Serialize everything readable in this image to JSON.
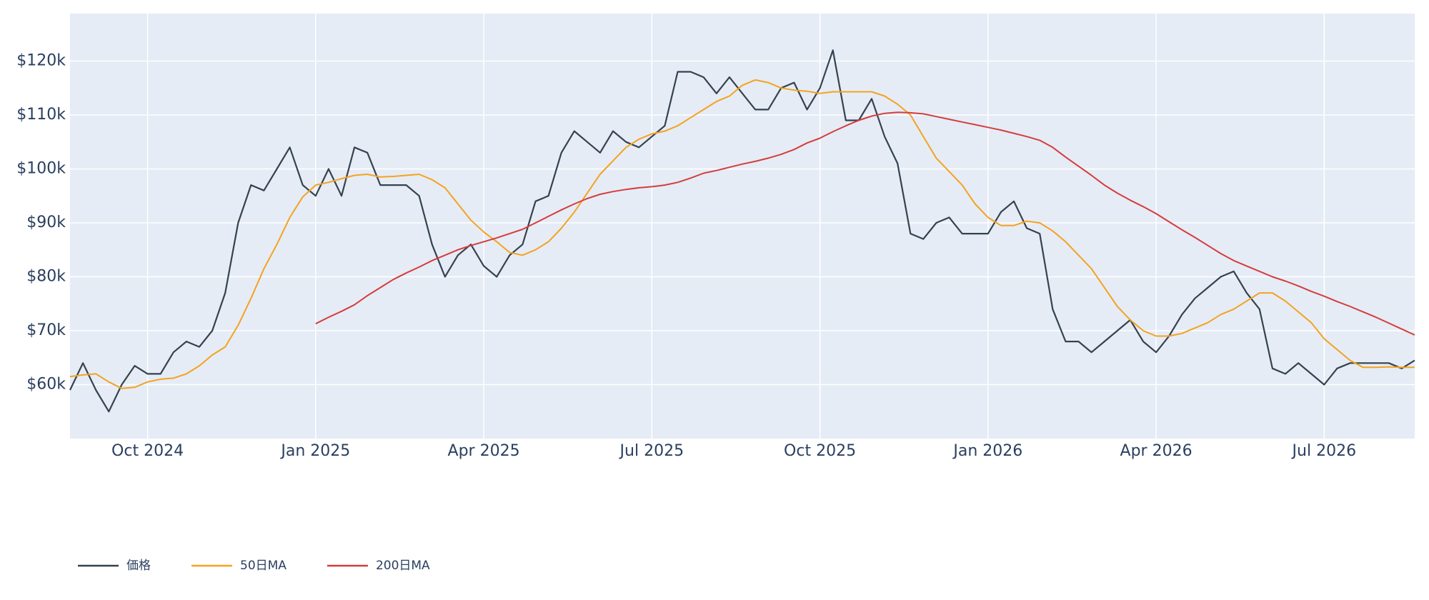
{
  "chart_data": {
    "type": "line",
    "categories": [
      null,
      null,
      null,
      null,
      null,
      null,
      "Oct 2024",
      null,
      null,
      null,
      null,
      null,
      null,
      null,
      null,
      null,
      null,
      null,
      null,
      "Jan 2025",
      null,
      null,
      null,
      null,
      null,
      null,
      null,
      null,
      null,
      null,
      null,
      null,
      "Apr 2025",
      null,
      null,
      null,
      null,
      null,
      null,
      null,
      null,
      null,
      null,
      null,
      null,
      "Jul 2025",
      null,
      null,
      null,
      null,
      null,
      null,
      null,
      null,
      null,
      null,
      null,
      null,
      "Oct 2025",
      null,
      null,
      null,
      null,
      null,
      null,
      null,
      null,
      null,
      null,
      null,
      null,
      "Jan 2026",
      null,
      null,
      null,
      null,
      null,
      null,
      null,
      null,
      null,
      null,
      null,
      null,
      "Apr 2026",
      null,
      null,
      null,
      null,
      null,
      null,
      null,
      null,
      null,
      null,
      null,
      null,
      "Jul 2026",
      null,
      null,
      null,
      null,
      null,
      null,
      null
    ],
    "series": [
      {
        "name": "価格",
        "color": "#35424f",
        "values": [
          59000,
          64000,
          59000,
          55000,
          60000,
          63500,
          62000,
          62000,
          66000,
          68000,
          67000,
          70000,
          77000,
          90000,
          97000,
          96000,
          100000,
          104000,
          97000,
          95000,
          100000,
          95000,
          104000,
          103000,
          97000,
          97000,
          97000,
          95000,
          86000,
          80000,
          84000,
          86000,
          82000,
          80000,
          84000,
          86000,
          94000,
          95000,
          103000,
          107000,
          105000,
          103000,
          107000,
          105000,
          104000,
          106000,
          108000,
          118000,
          118000,
          117000,
          114000,
          117000,
          114000,
          111000,
          111000,
          115000,
          116000,
          111000,
          115000,
          122000,
          109000,
          109000,
          113000,
          106000,
          101000,
          88000,
          87000,
          90000,
          91000,
          88000,
          88000,
          88000,
          92000,
          94000,
          89000,
          88000,
          74000,
          68000,
          68000,
          66000,
          68000,
          70000,
          72000,
          68000,
          66000,
          69000,
          73000,
          76000,
          78000,
          80000,
          81000,
          77000,
          74000,
          63000,
          62000,
          64000,
          62000,
          60000,
          63000,
          64000,
          64000,
          64000,
          64000,
          63000,
          64500
        ]
      },
      {
        "name": "50日MA",
        "color": "#f5a21f",
        "values": [
          61500,
          61800,
          62000,
          60500,
          59300,
          59500,
          60500,
          61000,
          61200,
          62000,
          63500,
          65500,
          67000,
          71000,
          76000,
          81500,
          86000,
          91000,
          94800,
          97000,
          97500,
          98200,
          98800,
          99000,
          98500,
          98600,
          98800,
          99000,
          98000,
          96500,
          93500,
          90500,
          88300,
          86500,
          84500,
          84000,
          85000,
          86500,
          89000,
          92000,
          95500,
          99000,
          101500,
          104000,
          105500,
          106500,
          107000,
          108000,
          109500,
          111000,
          112500,
          113500,
          115500,
          116500,
          116000,
          115000,
          114600,
          114400,
          114000,
          114300,
          114300,
          114300,
          114300,
          113500,
          112000,
          110000,
          106000,
          102000,
          99500,
          97000,
          93500,
          91000,
          89500,
          89500,
          90300,
          90000,
          88500,
          86500,
          84000,
          81500,
          78000,
          74500,
          72000,
          70000,
          69000,
          69000,
          69500,
          70500,
          71500,
          73000,
          74000,
          75500,
          77000,
          77000,
          75500,
          73500,
          71500,
          68500,
          66500,
          64500,
          63200,
          63200,
          63300,
          63200,
          63200
        ]
      },
      {
        "name": "200日MA",
        "color": "#d63c3c",
        "values": [
          null,
          null,
          null,
          null,
          null,
          null,
          null,
          null,
          null,
          null,
          null,
          null,
          null,
          null,
          null,
          null,
          null,
          null,
          null,
          71300,
          72500,
          73600,
          74800,
          76500,
          78000,
          79500,
          80700,
          81800,
          83000,
          84000,
          85000,
          85800,
          86500,
          87200,
          88000,
          88800,
          90000,
          91200,
          92400,
          93500,
          94500,
          95300,
          95800,
          96200,
          96500,
          96700,
          97000,
          97500,
          98300,
          99200,
          99700,
          100300,
          100900,
          101400,
          102000,
          102700,
          103600,
          104800,
          105700,
          106900,
          108000,
          109000,
          109800,
          110300,
          110500,
          110400,
          110200,
          109700,
          109200,
          108700,
          108200,
          107700,
          107200,
          106600,
          106000,
          105300,
          104000,
          102200,
          100500,
          98800,
          97000,
          95500,
          94200,
          93000,
          91700,
          90200,
          88700,
          87300,
          85800,
          84300,
          83000,
          82000,
          81000,
          80000,
          79200,
          78300,
          77300,
          76400,
          75400,
          74500,
          73500,
          72500,
          71400,
          70300,
          69200
        ]
      }
    ],
    "ylim": [
      50000,
      128800
    ],
    "yticks": [
      {
        "value": 60000,
        "label": "$60k"
      },
      {
        "value": 70000,
        "label": "$70k"
      },
      {
        "value": 80000,
        "label": "$80k"
      },
      {
        "value": 90000,
        "label": "$90k"
      },
      {
        "value": 100000,
        "label": "$100k"
      },
      {
        "value": 110000,
        "label": "$110k"
      },
      {
        "value": 120000,
        "label": "$120k"
      }
    ],
    "grid": true,
    "legend": "bottom-left"
  }
}
